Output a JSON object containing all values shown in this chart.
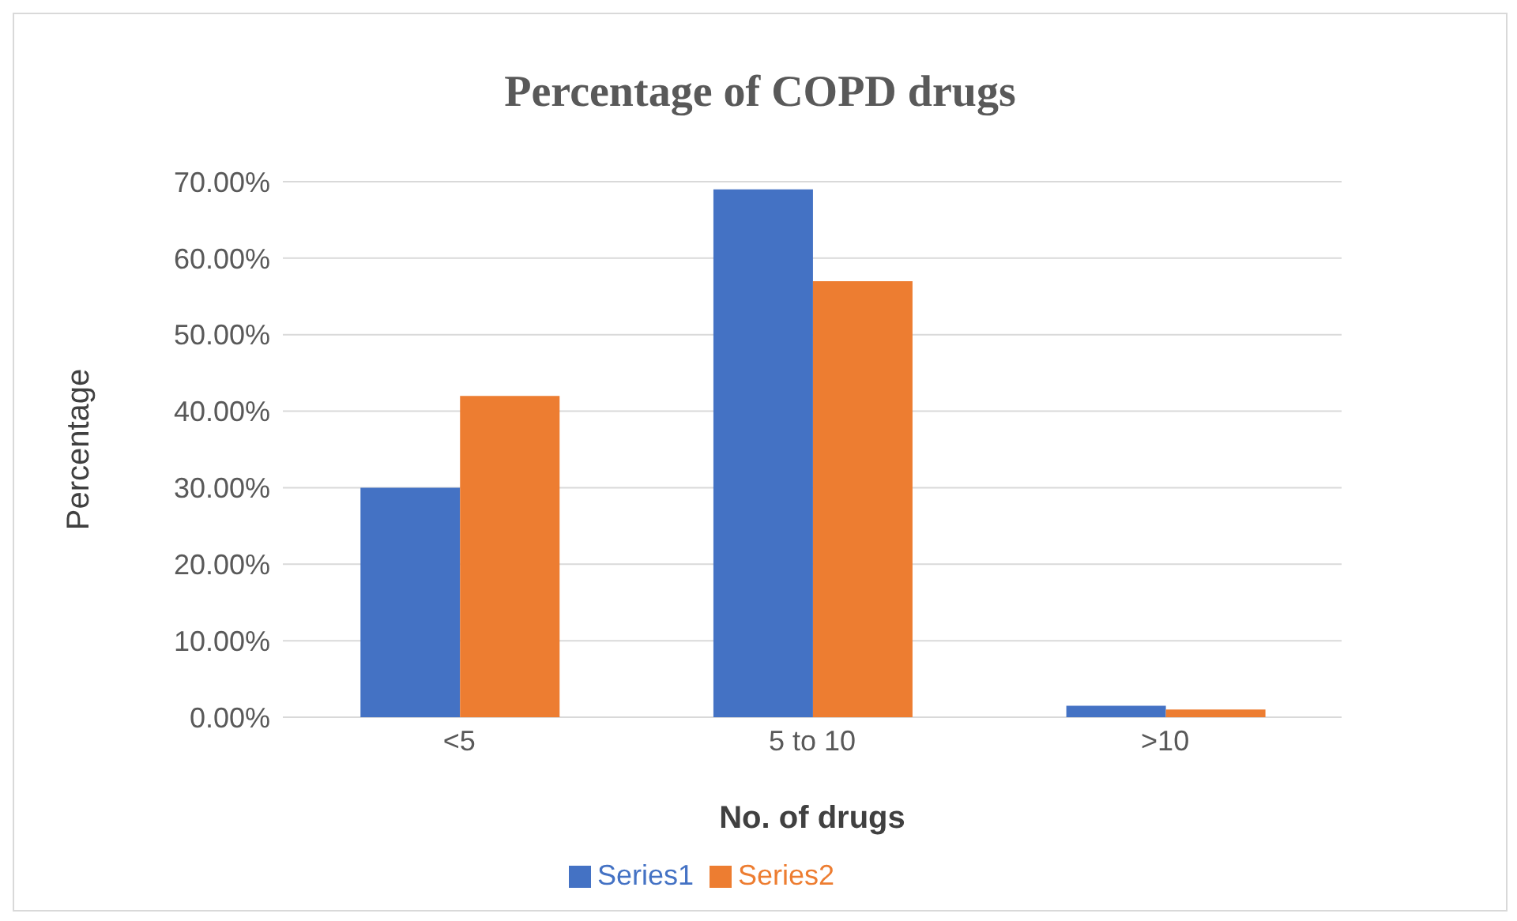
{
  "chart_data": {
    "type": "bar",
    "title": "Percentage of COPD drugs",
    "xlabel": "No. of drugs",
    "ylabel": "Percentage",
    "categories": [
      "<5",
      "5 to 10",
      ">10"
    ],
    "series": [
      {
        "name": "Series1",
        "color": "#4472c4",
        "values": [
          30,
          69,
          1.5
        ]
      },
      {
        "name": "Series2",
        "color": "#ed7d31",
        "values": [
          42,
          57,
          1
        ]
      }
    ],
    "ylim": [
      0,
      70
    ],
    "yticks": [
      {
        "value": 0,
        "label": "0.00%"
      },
      {
        "value": 10,
        "label": "10.00%"
      },
      {
        "value": 20,
        "label": "20.00%"
      },
      {
        "value": 30,
        "label": "30.00%"
      },
      {
        "value": 40,
        "label": "40.00%"
      },
      {
        "value": 50,
        "label": "50.00%"
      },
      {
        "value": 60,
        "label": "60.00%"
      },
      {
        "value": 70,
        "label": "70.00%"
      }
    ],
    "grid": "y",
    "legend": "bottom"
  }
}
